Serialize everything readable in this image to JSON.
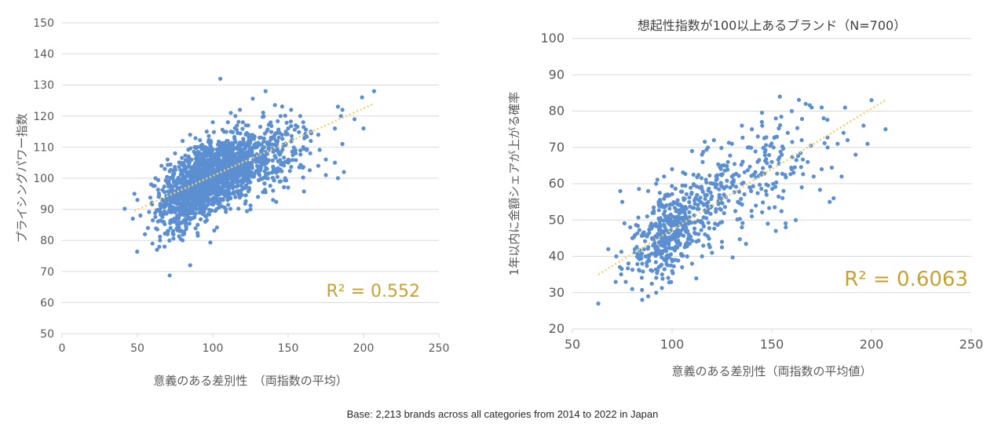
{
  "colors": {
    "point": "#5b8fd1",
    "trend": "#f2cf74",
    "grid": "#d9d9d9",
    "axis_text": "#595959",
    "r2": "#c9a133"
  },
  "footnote": "Base: 2,213 brands across all categories from 2014 to 2022 in Japan",
  "chart_data": [
    {
      "type": "scatter",
      "title": "",
      "xlabel": "意義のある差別性　（両指数の平均）",
      "ylabel": "プライシングパワー指数",
      "xlim": [
        0,
        250
      ],
      "ylim": [
        50,
        150
      ],
      "x_ticks": [
        0,
        50,
        100,
        150,
        200,
        250
      ],
      "y_ticks": [
        50,
        60,
        70,
        80,
        90,
        100,
        110,
        120,
        130,
        140,
        150
      ],
      "grid": "horizontal",
      "r_squared_label": "R² = 0.552",
      "trendline": {
        "style": "dotted",
        "x": [
          48,
          207
        ],
        "y": [
          89.5,
          124
        ]
      },
      "n_points": 2213,
      "points": [
        [
          105,
          132
        ],
        [
          135,
          128
        ],
        [
          207,
          128
        ],
        [
          199,
          126
        ],
        [
          183,
          123
        ],
        [
          186,
          122
        ],
        [
          185,
          120
        ],
        [
          194,
          119
        ],
        [
          181,
          116
        ],
        [
          200,
          116
        ],
        [
          186,
          111
        ],
        [
          175,
          106
        ],
        [
          181,
          105
        ],
        [
          187,
          102
        ],
        [
          183,
          100
        ],
        [
          175,
          101
        ],
        [
          170,
          104
        ],
        [
          165,
          115
        ],
        [
          160,
          118
        ],
        [
          155,
          117
        ],
        [
          150,
          116
        ],
        [
          145,
          120
        ],
        [
          152,
          122
        ],
        [
          158,
          120
        ],
        [
          48,
          95
        ],
        [
          50,
          93
        ],
        [
          47,
          87
        ],
        [
          52,
          88
        ],
        [
          55,
          82
        ],
        [
          57,
          84
        ],
        [
          60,
          79
        ],
        [
          63,
          77
        ],
        [
          65,
          80
        ],
        [
          68,
          78
        ],
        [
          85,
          72
        ],
        [
          80,
          80
        ],
        [
          90,
          85
        ],
        [
          95,
          86
        ],
        [
          75,
          86
        ],
        [
          78,
          83
        ],
        [
          70,
          82
        ],
        [
          72,
          84
        ],
        [
          125,
          90
        ],
        [
          130,
          94
        ],
        [
          140,
          96
        ],
        [
          145,
          99
        ],
        [
          148,
          100
        ],
        [
          150,
          97
        ],
        [
          140,
          93
        ],
        [
          136,
          103
        ],
        [
          150,
          105
        ],
        [
          155,
          108
        ],
        [
          160,
          110
        ],
        [
          165,
          112
        ],
        [
          170,
          114
        ],
        [
          142,
          112
        ],
        [
          137,
          109
        ],
        [
          146,
          114
        ],
        [
          80,
          112
        ],
        [
          85,
          114
        ],
        [
          88,
          110
        ],
        [
          78,
          105
        ],
        [
          75,
          108
        ],
        [
          115,
          120
        ],
        [
          118,
          122
        ],
        [
          120,
          118
        ],
        [
          122,
          117
        ],
        [
          112,
          121
        ],
        [
          110,
          118
        ],
        [
          100,
          118
        ],
        [
          96,
          115
        ],
        [
          62,
          100
        ],
        [
          66,
          104
        ],
        [
          70,
          106
        ]
      ],
      "clusters": [
        {
          "cx": 90,
          "cy": 98,
          "sx": 12,
          "sy": 6,
          "n": 600
        },
        {
          "cx": 105,
          "cy": 102,
          "sx": 13,
          "sy": 5.5,
          "n": 600
        },
        {
          "cx": 82,
          "cy": 94,
          "sx": 10,
          "sy": 5,
          "n": 280
        },
        {
          "cx": 125,
          "cy": 106,
          "sx": 14,
          "sy": 5,
          "n": 250
        },
        {
          "cx": 140,
          "cy": 106,
          "sx": 14,
          "sy": 6,
          "n": 120
        }
      ]
    },
    {
      "type": "scatter",
      "title": "想起性指数が100以上あるブランド（N=700）",
      "xlabel": "意義のある差別性（両指数の平均値）",
      "ylabel": "1年以内に金額シェアが上がる確率",
      "xlim": [
        50,
        250
      ],
      "ylim": [
        20,
        100
      ],
      "x_ticks": [
        50,
        100,
        150,
        200,
        250
      ],
      "y_ticks": [
        20,
        30,
        40,
        50,
        60,
        70,
        80,
        90,
        100
      ],
      "grid": "horizontal",
      "r_squared_label": "R² = 0.6063",
      "trendline": {
        "style": "dotted",
        "x": [
          63,
          207
        ],
        "y": [
          35,
          83
        ]
      },
      "n_points": 700,
      "points": [
        [
          63,
          27
        ],
        [
          68,
          42
        ],
        [
          72,
          40
        ],
        [
          74,
          58
        ],
        [
          75,
          55
        ],
        [
          79,
          48
        ],
        [
          80,
          31
        ],
        [
          85,
          28
        ],
        [
          88,
          29
        ],
        [
          92,
          30
        ],
        [
          88,
          58
        ],
        [
          92,
          60
        ],
        [
          96,
          62
        ],
        [
          100,
          64
        ],
        [
          110,
          69
        ],
        [
          115,
          68
        ],
        [
          118,
          70
        ],
        [
          121,
          72
        ],
        [
          130,
          71
        ],
        [
          135,
          76
        ],
        [
          140,
          75
        ],
        [
          145,
          77
        ],
        [
          152,
          78
        ],
        [
          154,
          84
        ],
        [
          160,
          80
        ],
        [
          167,
          82
        ],
        [
          170,
          81
        ],
        [
          175,
          81
        ],
        [
          200,
          83
        ],
        [
          207,
          75
        ],
        [
          198,
          71
        ],
        [
          188,
          72
        ],
        [
          181,
          56
        ],
        [
          185,
          62
        ],
        [
          168,
          66
        ],
        [
          160,
          64
        ],
        [
          157,
          48
        ],
        [
          152,
          47
        ],
        [
          148,
          49
        ],
        [
          162,
          50
        ],
        [
          165,
          59
        ],
        [
          171,
          62
        ],
        [
          178,
          70
        ],
        [
          183,
          71
        ],
        [
          196,
          76
        ],
        [
          192,
          68
        ],
        [
          186,
          74
        ],
        [
          179,
          55
        ],
        [
          140,
          51
        ],
        [
          135,
          48
        ],
        [
          125,
          44
        ],
        [
          120,
          41
        ],
        [
          115,
          40
        ],
        [
          110,
          38
        ],
        [
          105,
          37
        ],
        [
          95,
          35
        ],
        [
          90,
          36
        ],
        [
          85,
          38
        ],
        [
          130,
          62
        ],
        [
          135,
          60
        ],
        [
          145,
          63
        ],
        [
          150,
          66
        ],
        [
          155,
          68
        ],
        [
          143,
          73
        ],
        [
          138,
          70
        ],
        [
          128,
          66
        ],
        [
          175,
          64
        ],
        [
          165,
          72
        ],
        [
          158,
          74
        ],
        [
          147,
          58
        ],
        [
          142,
          54
        ],
        [
          133,
          55
        ],
        [
          126,
          57
        ],
        [
          122,
          53
        ]
      ],
      "clusters": [
        {
          "cx": 95,
          "cy": 45,
          "sx": 9,
          "sy": 5.5,
          "n": 280
        },
        {
          "cx": 110,
          "cy": 52,
          "sx": 10,
          "sy": 5,
          "n": 160
        },
        {
          "cx": 132,
          "cy": 60,
          "sx": 14,
          "sy": 7,
          "n": 120
        },
        {
          "cx": 155,
          "cy": 66,
          "sx": 14,
          "sy": 7,
          "n": 66
        }
      ]
    }
  ]
}
